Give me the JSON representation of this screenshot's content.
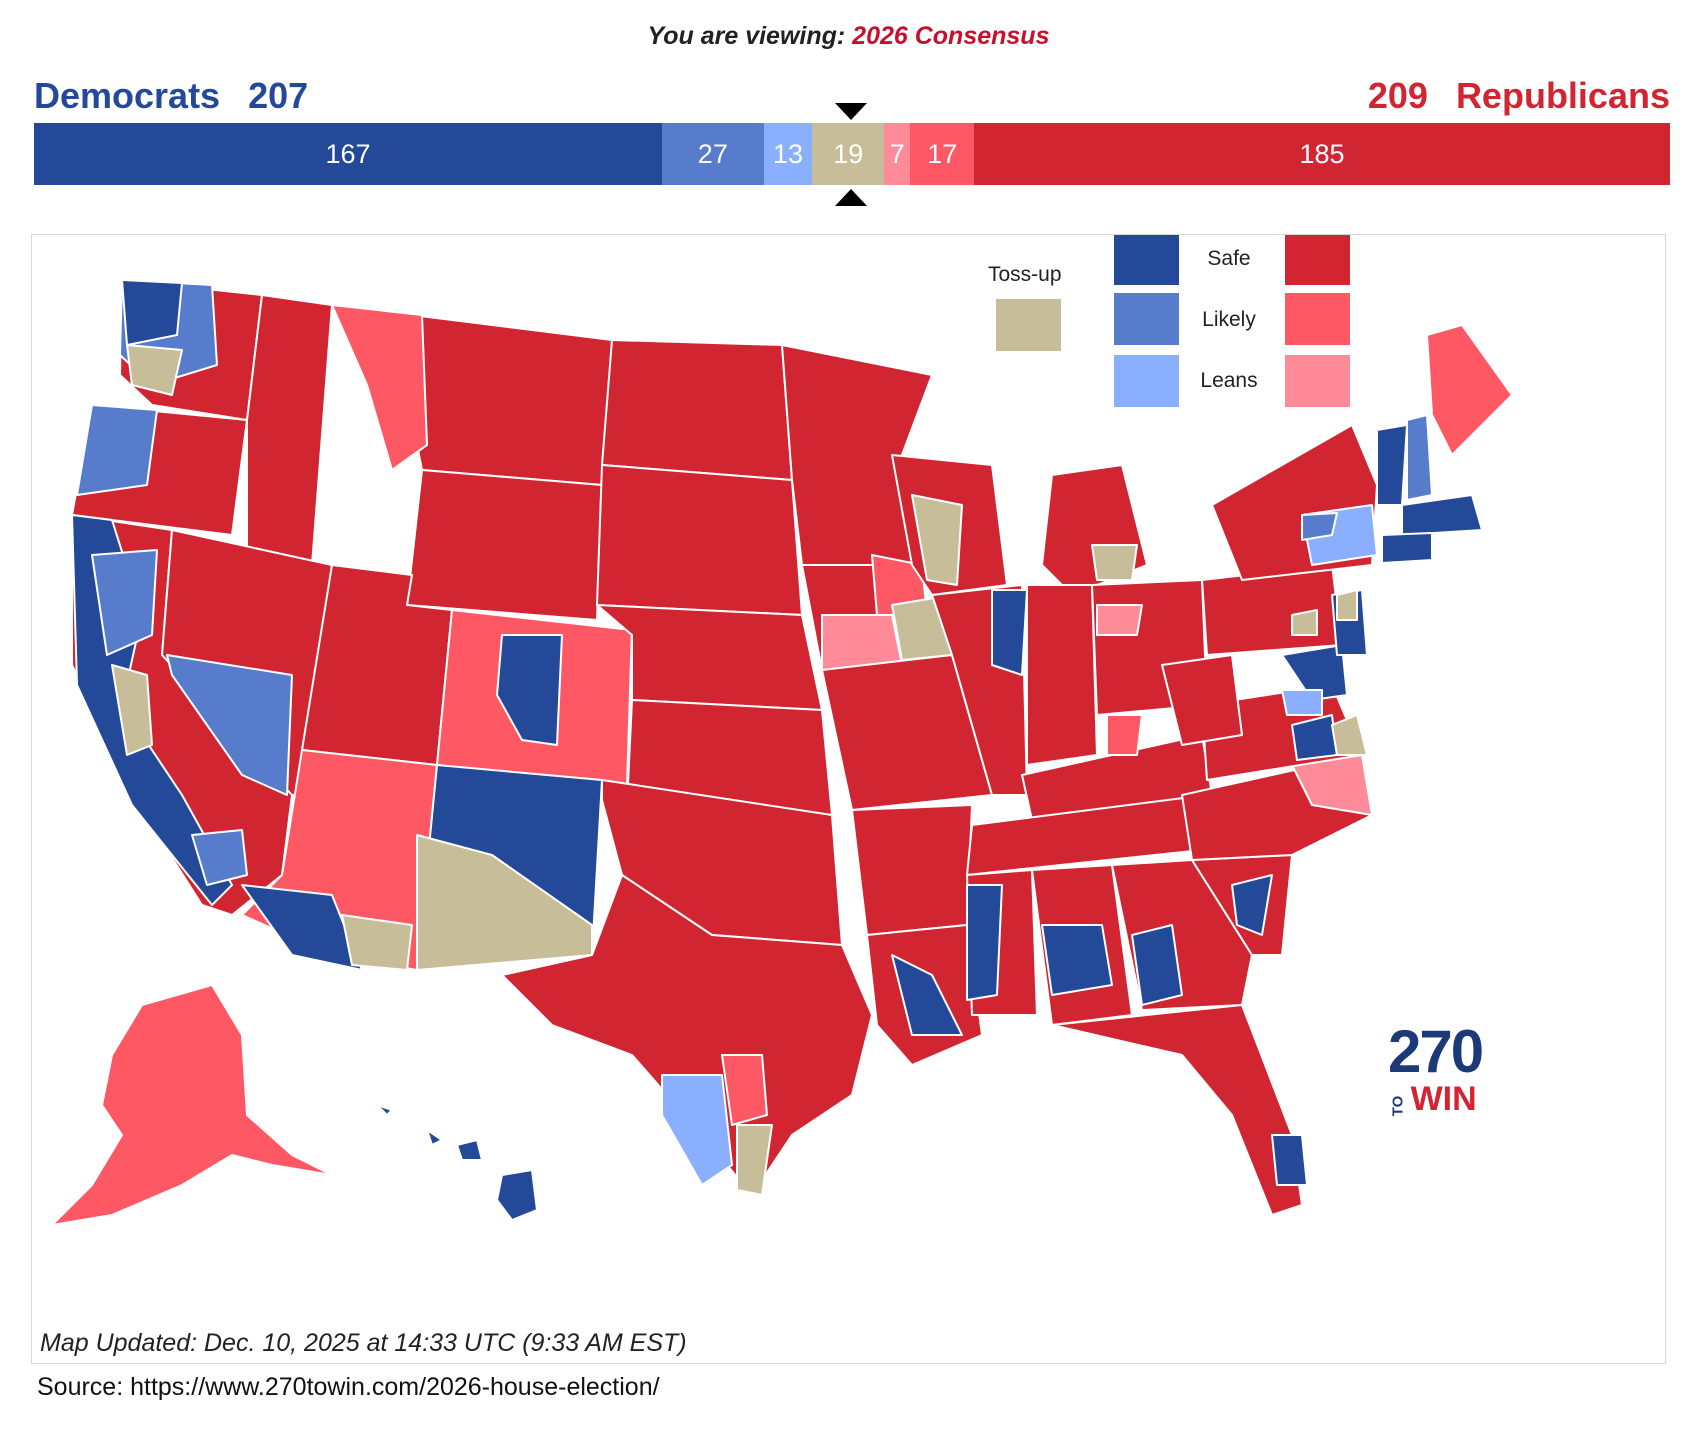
{
  "header": {
    "viewing_prefix": "You are viewing:",
    "viewing_name": "2026 Consensus"
  },
  "democrats": {
    "label": "Democrats",
    "total": "207"
  },
  "republicans": {
    "label": "Republicans",
    "total": "209"
  },
  "seat_bar": [
    {
      "category": "Safe Democrat",
      "count": "167",
      "seats": 167,
      "color": "#244999"
    },
    {
      "category": "Likely Democrat",
      "count": "27",
      "seats": 27,
      "color": "#577ccc"
    },
    {
      "category": "Leans Democrat",
      "count": "13",
      "seats": 13,
      "color": "#8aafff"
    },
    {
      "category": "Toss-up",
      "count": "19",
      "seats": 19,
      "color": "#c8bd99"
    },
    {
      "category": "Leans Republican",
      "count": "7",
      "seats": 7,
      "color": "#ff8b98"
    },
    {
      "category": "Likely Republican",
      "count": "17",
      "seats": 17,
      "color": "#ff5865"
    },
    {
      "category": "Safe Republican",
      "count": "185",
      "seats": 185,
      "color": "#d22532"
    }
  ],
  "legend": {
    "tossup_label": "Toss-up",
    "rows": [
      {
        "label": "Safe",
        "dem_color": "#244999",
        "rep_color": "#d22532"
      },
      {
        "label": "Likely",
        "dem_color": "#577ccc",
        "rep_color": "#ff5865"
      },
      {
        "label": "Leans",
        "dem_color": "#8aafff",
        "rep_color": "#ff8b98"
      }
    ],
    "tossup_color": "#c8bd99"
  },
  "logo": {
    "number": "270",
    "to": "TO",
    "win": "WIN"
  },
  "footer": {
    "updated": "Map Updated: Dec. 10, 2025 at 14:33 UTC (9:33 AM EST)",
    "source": "Source: https://www.270towin.com/2026-house-election/"
  }
}
